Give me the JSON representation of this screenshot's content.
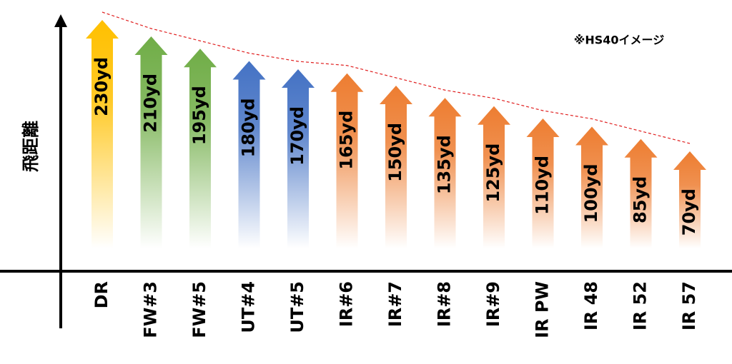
{
  "chart_data": {
    "type": "arrow-bar",
    "y_label": "飛距離",
    "annotation": "※HS40イメージ",
    "categories": [
      "DR",
      "FW#3",
      "FW#5",
      "UT#4",
      "UT#5",
      "IR#6",
      "IR#7",
      "IR#8",
      "IR#9",
      "IR PW",
      "IR 48",
      "IR 52",
      "IR 57"
    ],
    "values": [
      230,
      210,
      195,
      180,
      170,
      165,
      150,
      135,
      125,
      110,
      100,
      85,
      70
    ],
    "value_labels": [
      "230yd",
      "210yd",
      "195yd",
      "180yd",
      "170yd",
      "165yd",
      "150yd",
      "135yd",
      "125yd",
      "110yd",
      "100yd",
      "85yd",
      "70yd"
    ],
    "colors": [
      "#ffc000",
      "#70ad47",
      "#70ad47",
      "#4472c4",
      "#4472c4",
      "#ed7d31",
      "#ed7d31",
      "#ed7d31",
      "#ed7d31",
      "#ed7d31",
      "#ed7d31",
      "#ed7d31",
      "#ed7d31"
    ],
    "trend_line_color": "#e02020"
  }
}
